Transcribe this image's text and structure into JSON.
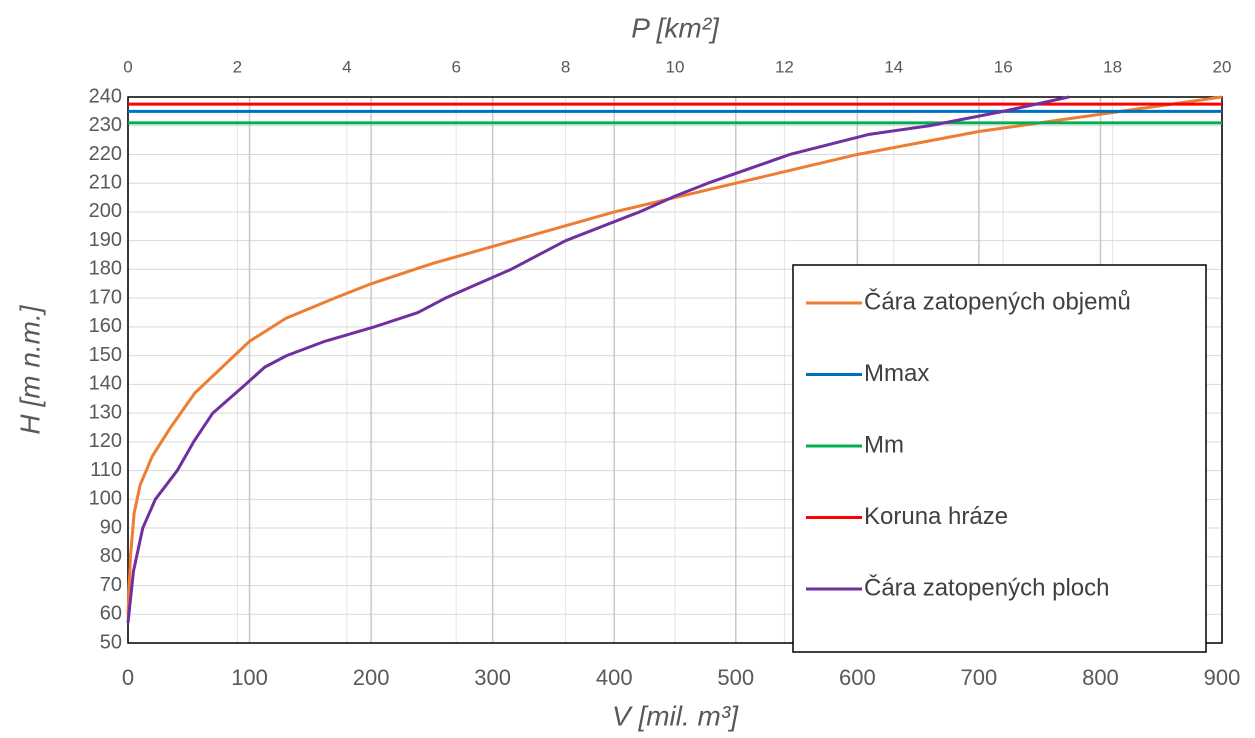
{
  "chart_data": {
    "type": "line",
    "x_label": "V [mil. m³]",
    "x2_label": "P [km²]",
    "y_label": "H [m n.m.]",
    "xlim": [
      0,
      900
    ],
    "xticks": [
      0,
      100,
      200,
      300,
      400,
      500,
      600,
      700,
      800,
      900
    ],
    "x2lim": [
      0,
      20
    ],
    "x2ticks": [
      0,
      2,
      4,
      6,
      8,
      10,
      12,
      14,
      16,
      18,
      20
    ],
    "ylim": [
      50,
      240
    ],
    "yticks": [
      50,
      60,
      70,
      80,
      90,
      100,
      110,
      120,
      130,
      140,
      150,
      160,
      170,
      180,
      190,
      200,
      210,
      220,
      230,
      240
    ],
    "grid": true,
    "legend": "right",
    "series": [
      {
        "name": "Čára zatopených objemů",
        "color": "#ed7d31",
        "x": [
          0,
          2,
          5,
          10,
          20,
          35,
          55,
          80,
          100,
          130,
          170,
          200,
          250,
          300,
          350,
          400,
          450,
          500,
          550,
          600,
          650,
          700,
          750,
          800,
          850,
          900
        ],
        "values": [
          60,
          80,
          95,
          105,
          115,
          125,
          137,
          147,
          155,
          163,
          170,
          175,
          182,
          188,
          194,
          200,
          205,
          210,
          215,
          220,
          224,
          228,
          231,
          234,
          237,
          240
        ]
      },
      {
        "name": "Mmax",
        "color": "#0070c0",
        "x": [
          0,
          900
        ],
        "values": [
          235,
          235
        ]
      },
      {
        "name": "Mm",
        "color": "#00b050",
        "x": [
          0,
          900
        ],
        "values": [
          231,
          231
        ]
      },
      {
        "name": "Koruna hráze",
        "color": "#ff0000",
        "x": [
          0,
          900
        ],
        "values": [
          237.5,
          237.5
        ]
      },
      {
        "name": "Čára zatopených ploch",
        "color": "#7030a0",
        "xaxis": "x2",
        "x": [
          0,
          0.1,
          0.27,
          0.5,
          0.9,
          1.2,
          1.55,
          2.15,
          2.5,
          2.9,
          3.6,
          4.5,
          5.3,
          5.8,
          7.0,
          8.0,
          9.35,
          10.0,
          10.6,
          12.1,
          13.55,
          14.65,
          16,
          17.2
        ],
        "values": [
          57,
          75,
          90,
          100,
          110,
          120,
          130,
          140,
          146,
          150,
          155,
          160,
          165,
          170,
          180,
          190,
          200,
          205.5,
          210,
          220,
          227,
          230,
          235,
          240
        ]
      }
    ]
  }
}
